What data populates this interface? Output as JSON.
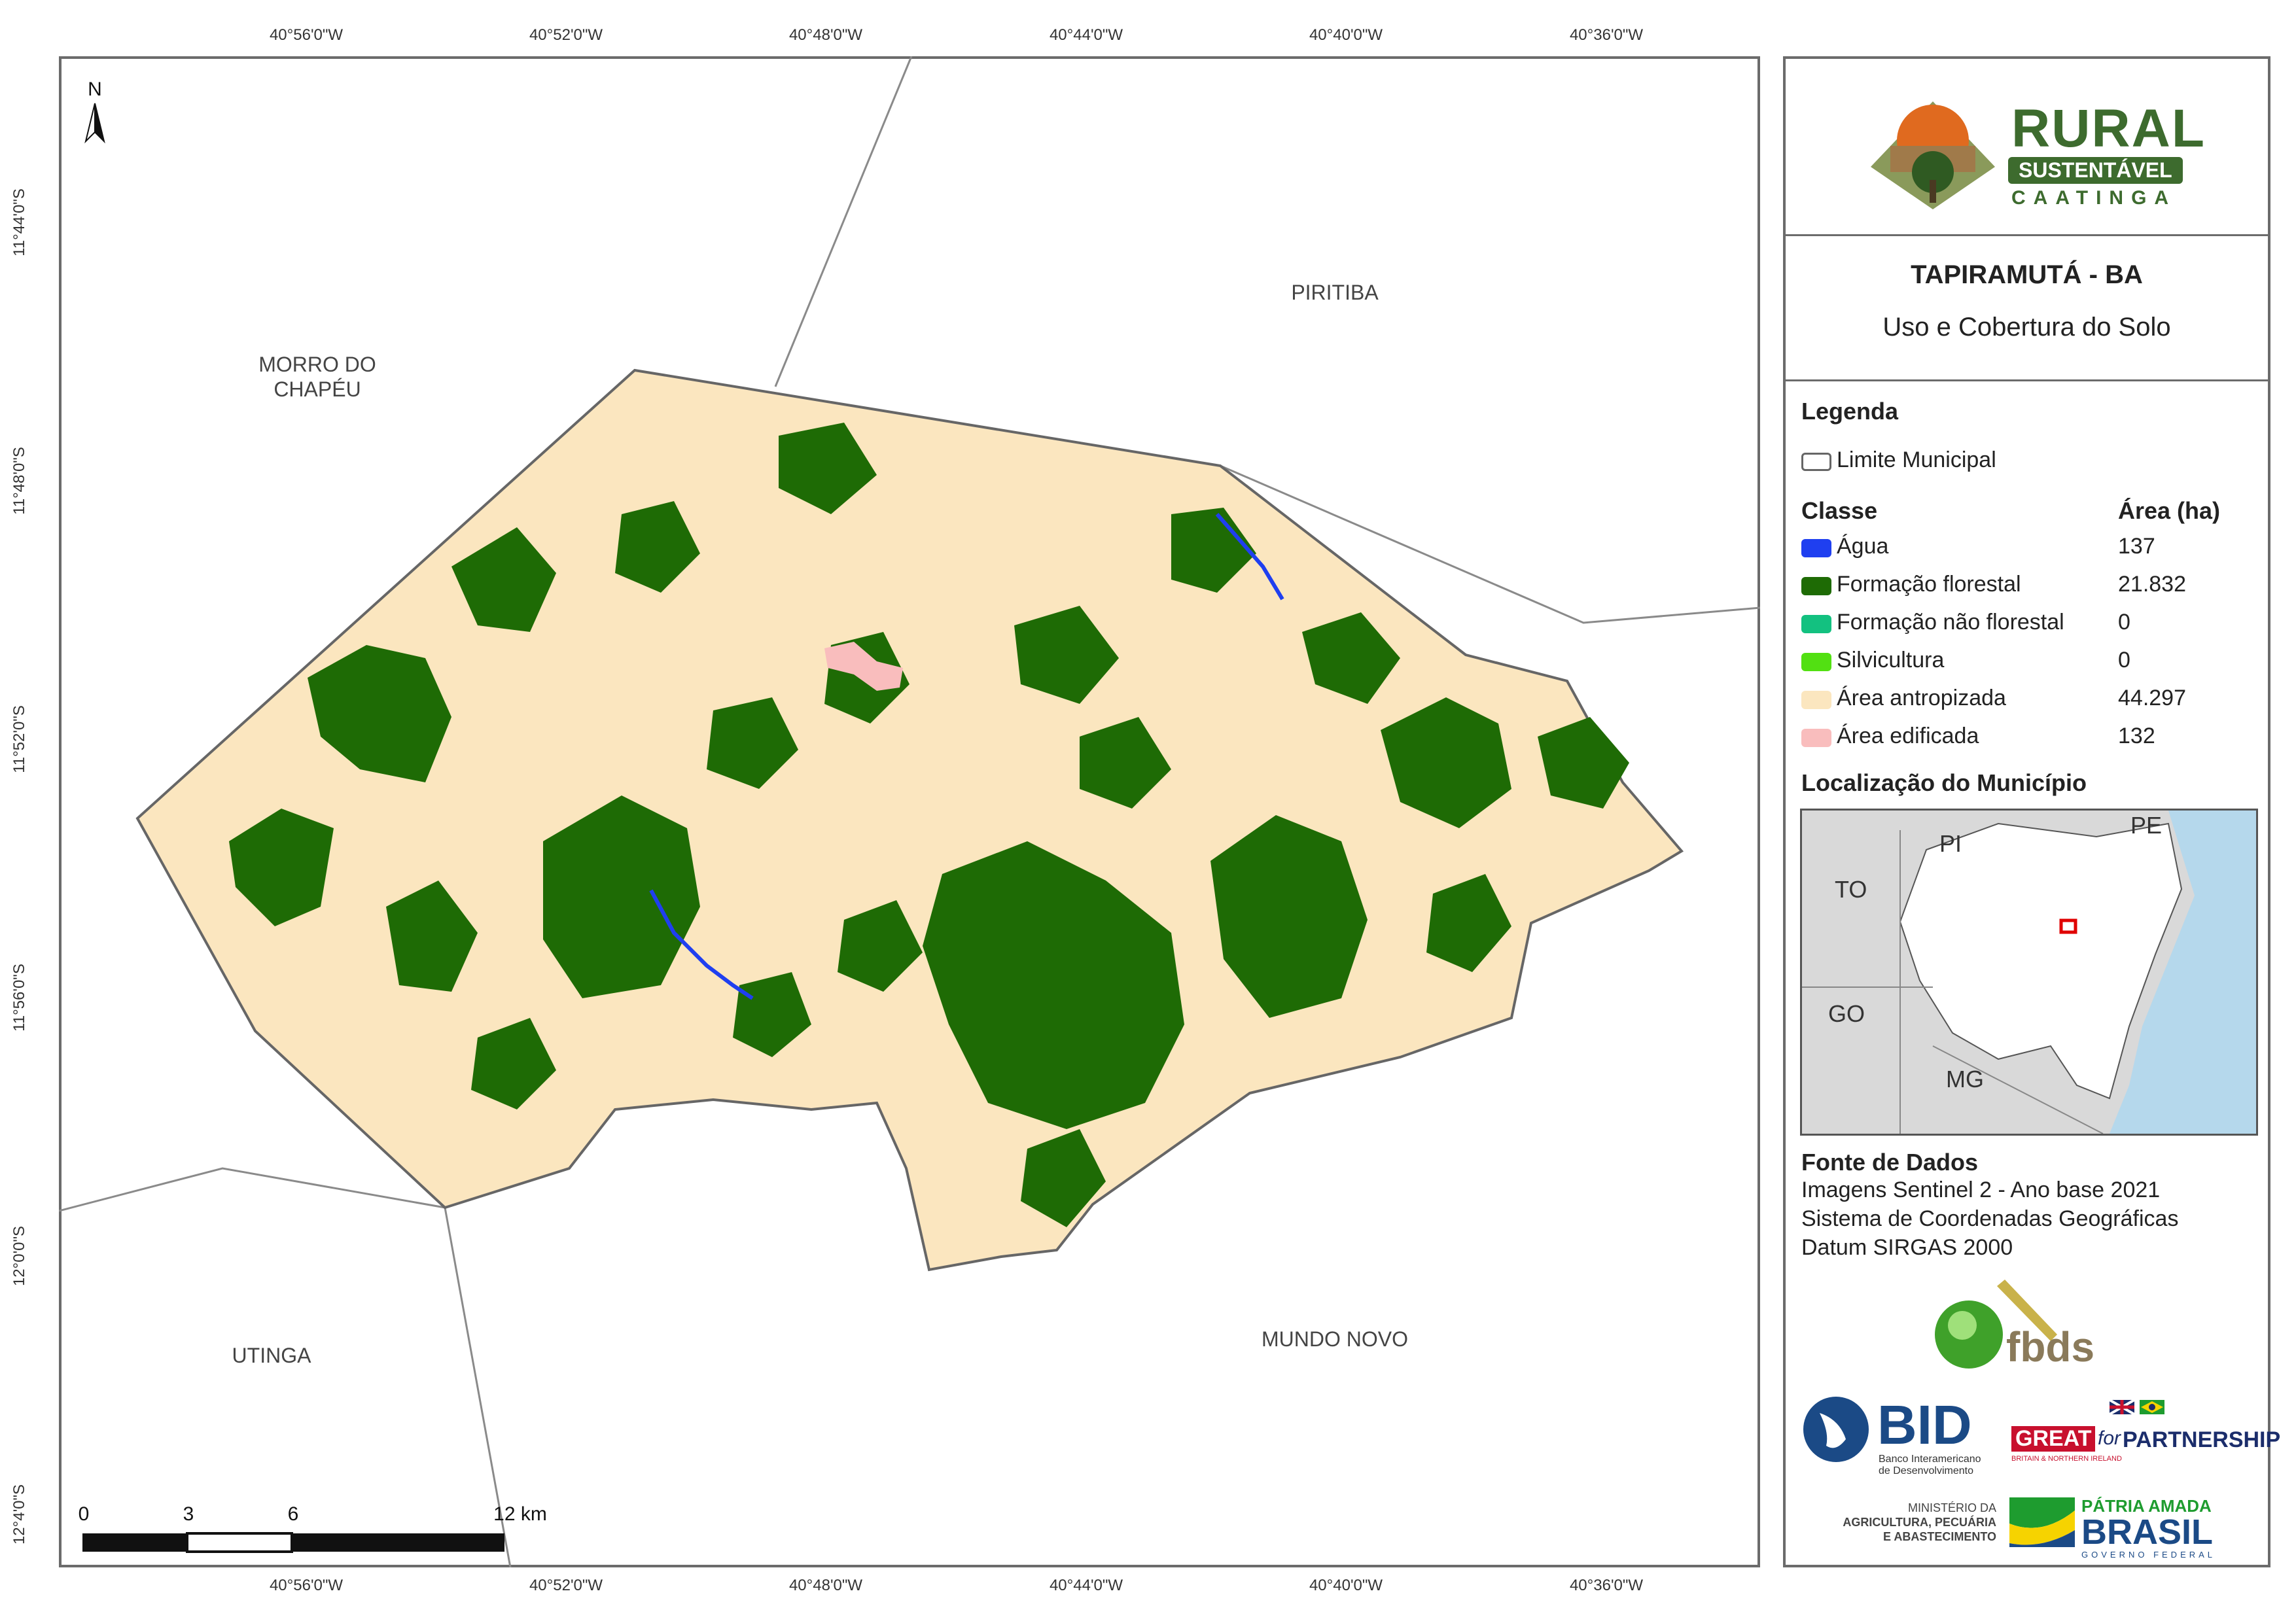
{
  "map": {
    "ticks_top": [
      "40°56'0\"W",
      "40°52'0\"W",
      "40°48'0\"W",
      "40°44'0\"W",
      "40°40'0\"W",
      "40°36'0\"W"
    ],
    "ticks_bottom": [
      "40°56'0\"W",
      "40°52'0\"W",
      "40°48'0\"W",
      "40°44'0\"W",
      "40°40'0\"W",
      "40°36'0\"W"
    ],
    "ticks_left": [
      "11°44'0\"S",
      "11°48'0\"S",
      "11°52'0\"S",
      "11°56'0\"S",
      "12°0'0\"S",
      "12°4'0\"S"
    ],
    "north_label": "N",
    "neighbors": {
      "morro_do_chapeu_line1": "MORRO DO",
      "morro_do_chapeu_line2": "CHAPÉU",
      "piritiba": "PIRITIBA",
      "utinga": "UTINGA",
      "mundo_novo": "MUNDO NOVO"
    },
    "scale": {
      "labels": [
        "0",
        "3",
        "6",
        "12 km"
      ]
    }
  },
  "panel": {
    "logo": {
      "word1": "RURAL",
      "word2": "SUSTENTÁVEL",
      "word3": "CAATINGA"
    },
    "title": "TAPIRAMUTÁ - BA",
    "subtitle": "Uso e Cobertura do Solo",
    "legend": {
      "heading": "Legenda",
      "boundary_label": "Limite Municipal",
      "class_header": "Classe",
      "area_header": "Área (ha)",
      "classes": [
        {
          "label": "Água",
          "area": "137",
          "color": "#1f3ff0"
        },
        {
          "label": "Formação florestal",
          "area": "21.832",
          "color": "#1e6b05"
        },
        {
          "label": "Formação não florestal",
          "area": "0",
          "color": "#13c180"
        },
        {
          "label": "Silvicultura",
          "area": "0",
          "color": "#52e012"
        },
        {
          "label": "Área antropizada",
          "area": "44.297",
          "color": "#fbe6bf"
        },
        {
          "label": "Área edificada",
          "area": "132",
          "color": "#f9bdbd"
        }
      ]
    },
    "location": {
      "heading": "Localização do Município",
      "states": {
        "pi": "PI",
        "pe": "PE",
        "to": "TO",
        "go": "GO",
        "mg": "MG"
      }
    },
    "source": {
      "heading": "Fonte de Dados",
      "lines": [
        "Imagens Sentinel 2 - Ano base 2021",
        "Sistema de Coordenadas Geográficas",
        "Datum SIRGAS 2000"
      ]
    },
    "partners": {
      "fbds": "fbds",
      "bid": "BID",
      "bid_sub1": "Banco Interamericano",
      "bid_sub2": "de Desenvolvimento",
      "great": "GREAT",
      "great_for": "for",
      "great_partnership": "PARTNERSHIP",
      "great_sub": "BRITAIN & NORTHERN IRELAND",
      "ministry1": "MINISTÉRIO DA",
      "ministry2": "AGRICULTURA, PECUÁRIA",
      "ministry3": "E ABASTECIMENTO",
      "patria": "PÁTRIA AMADA",
      "brasil": "BRASIL",
      "gov": "GOVERNO FEDERAL"
    }
  }
}
